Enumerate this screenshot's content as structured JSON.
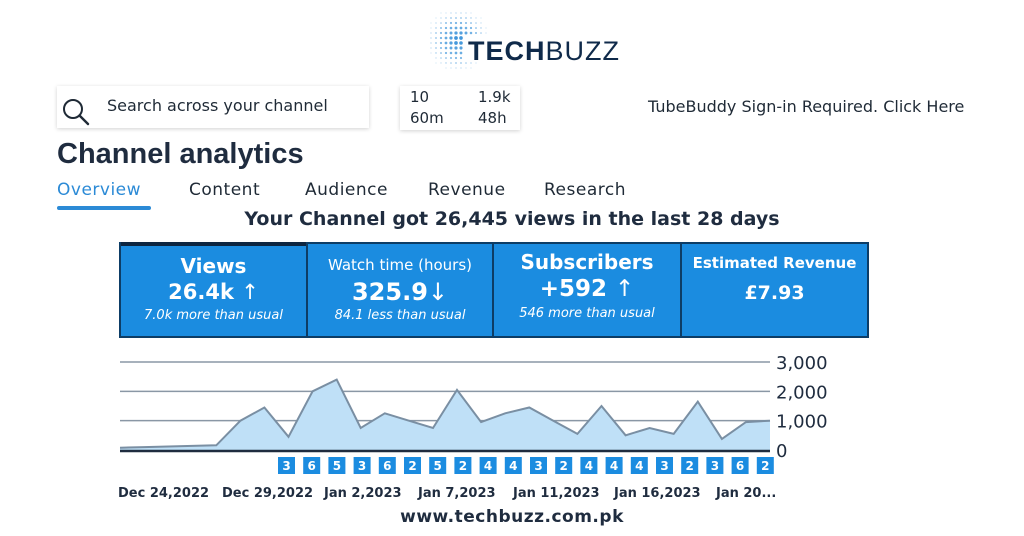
{
  "logo": {
    "brand_part1": "TECH",
    "brand_part2": "BUZZ"
  },
  "search": {
    "placeholder": "Search across your channel"
  },
  "quick_stats": {
    "top_left": "10",
    "top_right": "1.9k",
    "bottom_left": "60m",
    "bottom_right": "48h"
  },
  "tubebuddy": {
    "text": "TubeBuddy Sign-in Required. Click Here"
  },
  "page_title": "Channel analytics",
  "tabs": [
    {
      "label": "Overview",
      "active": true
    },
    {
      "label": "Content",
      "active": false
    },
    {
      "label": "Audience",
      "active": false
    },
    {
      "label": "Revenue",
      "active": false
    },
    {
      "label": "Research",
      "active": false
    }
  ],
  "headline": "Your Channel got 26,445 views in the last 28 days",
  "cards": [
    {
      "title": "Views",
      "value": "26.4k",
      "arrow": "↑",
      "sub": "7.0k more than usual"
    },
    {
      "title": "Watch time (hours)",
      "value": "325.9",
      "arrow": "↓",
      "sub": "84.1 less than usual"
    },
    {
      "title": "Subscribers",
      "value": "+592",
      "arrow": "↑",
      "sub": "546 more than usual"
    },
    {
      "title": "Estimated Revenue",
      "value": "£7.93",
      "arrow": "",
      "sub": ""
    }
  ],
  "colors": {
    "accent": "#2b8ad6",
    "card_bg": "#1b8ce0",
    "card_border": "#0d3d66",
    "area_fill": "#bfe0f7",
    "line": "#7a8fa3",
    "marker_bg": "#1b8ce0"
  },
  "chart_data": {
    "type": "area",
    "ylim": [
      0,
      3000
    ],
    "y_ticks": [
      "3,000",
      "2,000",
      "1,000",
      "0"
    ],
    "y_tick_values": [
      3000,
      2000,
      1000,
      0
    ],
    "values": [
      80,
      100,
      120,
      140,
      160,
      1000,
      1450,
      450,
      2000,
      2400,
      750,
      1250,
      1000,
      750,
      2050,
      950,
      1250,
      1450,
      1000,
      550,
      1500,
      500,
      750,
      550,
      1650,
      380,
      950,
      1000
    ],
    "upload_markers": [
      "3",
      "6",
      "5",
      "3",
      "6",
      "2",
      "5",
      "2",
      "4",
      "4",
      "3",
      "2",
      "4",
      "4",
      "4",
      "3",
      "2",
      "3",
      "6",
      "2"
    ],
    "x_labels": [
      "Dec 24,2022",
      "Dec 29,2022",
      "Jan 2,2023",
      "Jan 7,2023",
      "Jan 11,2023",
      "Jan 16,2023",
      "Jan 20..."
    ]
  },
  "footer": {
    "url": "www.techbuzz.com.pk"
  }
}
